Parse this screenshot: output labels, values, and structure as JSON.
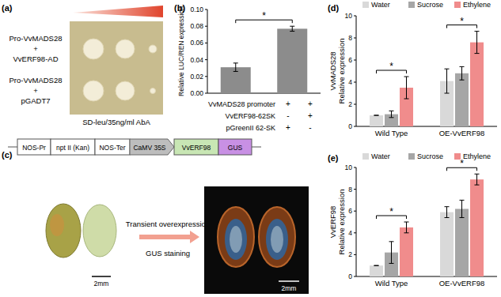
{
  "chart_data": [
    {
      "type": "bar",
      "panel": "(b)",
      "y_label": [
        "Relative LUC/REN expression"
      ],
      "categories": [
        null,
        null
      ],
      "values": [
        0.031,
        0.077
      ],
      "errors": [
        0.005,
        0.003
      ],
      "color": "#8c8c8c",
      "ylim": [
        0,
        0.1
      ],
      "yticks": [
        {
          "value": 0,
          "label": "0.00"
        },
        {
          "value": 0.02,
          "label": "0.02"
        },
        {
          "value": 0.04,
          "label": "0.04"
        },
        {
          "value": 0.06,
          "label": "0.06"
        },
        {
          "value": 0.08,
          "label": "0.08"
        },
        {
          "value": 0.1,
          "label": "0.10"
        }
      ],
      "annotations": [
        "*"
      ],
      "conditions": [
        {
          "label": "VvMADS28 promoter",
          "marks": [
            "+",
            "+"
          ]
        },
        {
          "label": "VvERF98-62SK",
          "marks": [
            "-",
            "+"
          ]
        },
        {
          "label": "pGreenII 62-SK",
          "marks": [
            "+",
            "-"
          ]
        }
      ]
    },
    {
      "type": "bar",
      "panel": "(d)",
      "y_label": [
        "VvMADS28",
        "Relative expression"
      ],
      "categories": [
        "Wild Type",
        "OE-VvERF98"
      ],
      "series": [
        {
          "name": "Water",
          "color": "#d9d9d9",
          "values": [
            1,
            4.1
          ],
          "errors": [
            0,
            1.1
          ]
        },
        {
          "name": "Sucrose",
          "color": "#a6a6a6",
          "values": [
            1.1,
            4.8
          ],
          "errors": [
            0.3,
            0.6
          ]
        },
        {
          "name": "Ethylene",
          "color": "#f08c8c",
          "values": [
            3.5,
            7.6
          ],
          "errors": [
            1.0,
            1.0
          ]
        }
      ],
      "ylim": [
        0,
        10
      ],
      "yticks": [
        0,
        2,
        4,
        6,
        8,
        10
      ],
      "legend": "top",
      "annotations": [
        "*",
        "*"
      ]
    },
    {
      "type": "bar",
      "panel": "(e)",
      "y_label": [
        "VvERF98",
        "Relative expression"
      ],
      "categories": [
        "Wild Type",
        "OE-VvERF98"
      ],
      "series": [
        {
          "name": "Water",
          "color": "#d9d9d9",
          "values": [
            1,
            5.9
          ],
          "errors": [
            0,
            0.5
          ]
        },
        {
          "name": "Sucrose",
          "color": "#a6a6a6",
          "values": [
            2.2,
            6.2
          ],
          "errors": [
            1.0,
            0.8
          ]
        },
        {
          "name": "Ethylene",
          "color": "#f08c8c",
          "values": [
            4.5,
            8.9
          ],
          "errors": [
            0.5,
            0.5
          ]
        }
      ],
      "ylim": [
        0,
        10
      ],
      "yticks": [
        0,
        2,
        4,
        6,
        8,
        10
      ],
      "legend": "top",
      "annotations": [
        "*",
        "*"
      ]
    }
  ],
  "panel_a": {
    "label": "(a)",
    "rows": [
      {
        "lines": [
          "Pro-VvMADS28",
          "+",
          "VvERF98-AD"
        ]
      },
      {
        "lines": [
          "Pro-VvMADS28",
          "+",
          "pGADT7"
        ]
      }
    ],
    "medium": "SD-leu/35ng/ml AbA"
  },
  "panel_c": {
    "label": "(c)",
    "construct": [
      "NOS-Pr",
      "npt II (Kan)",
      "NOS-Ter",
      "CaMV 35S",
      "VvERF98",
      "GUS"
    ],
    "arrow_top": "Transient overexpression",
    "arrow_bottom": "GUS staining",
    "scale_bars": [
      "2mm",
      "2mm"
    ]
  }
}
